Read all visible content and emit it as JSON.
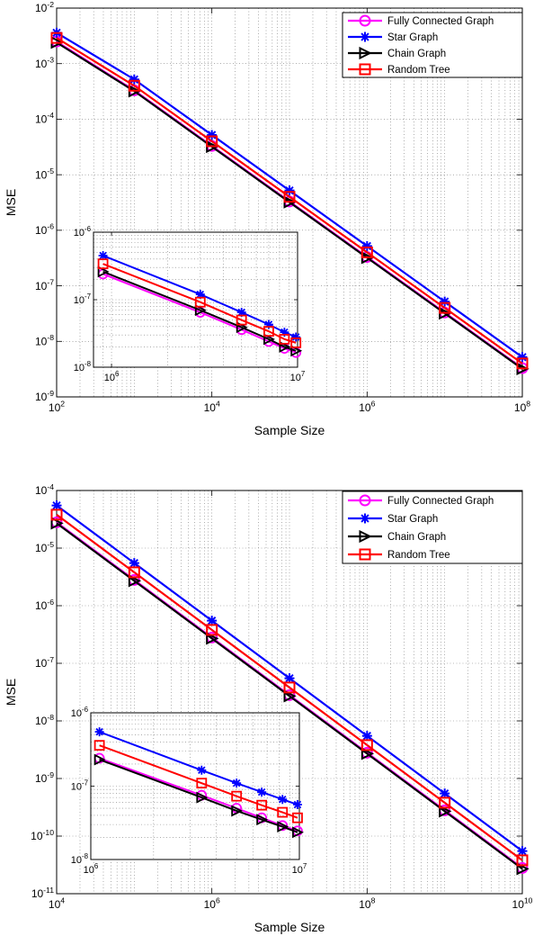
{
  "chart_data": [
    {
      "type": "line",
      "xlabel": "Sample Size",
      "ylabel": "MSE",
      "xscale": "log",
      "yscale": "log",
      "xlim": [
        100,
        100000000
      ],
      "ylim": [
        1e-09,
        0.01
      ],
      "xticks": [
        {
          "v": 100,
          "b": "10",
          "e": "2"
        },
        {
          "v": 10000,
          "b": "10",
          "e": "4"
        },
        {
          "v": 1000000,
          "b": "10",
          "e": "6"
        },
        {
          "v": 100000000,
          "b": "10",
          "e": "8"
        }
      ],
      "yticks": [
        {
          "v": 1e-09,
          "b": "10",
          "e": "-9"
        },
        {
          "v": 1e-08,
          "b": "10",
          "e": "-8"
        },
        {
          "v": 1e-07,
          "b": "10",
          "e": "-7"
        },
        {
          "v": 1e-06,
          "b": "10",
          "e": "-6"
        },
        {
          "v": 1e-05,
          "b": "10",
          "e": "-5"
        },
        {
          "v": 0.0001,
          "b": "10",
          "e": "-4"
        },
        {
          "v": 0.001,
          "b": "10",
          "e": "-3"
        },
        {
          "v": 0.01,
          "b": "10",
          "e": "-2"
        }
      ],
      "grid": true,
      "legend_position": "top-right",
      "x": [
        100,
        1000,
        10000,
        100000,
        1000000,
        10000000,
        100000000
      ],
      "series": [
        {
          "name": "Fully Connected Graph",
          "color": "#ff00ff",
          "marker": "circle",
          "values": [
            0.0025,
            0.00033,
            3.3e-05,
            3.3e-06,
            3.3e-07,
            3.3e-08,
            3.3e-09
          ]
        },
        {
          "name": "Star Graph",
          "color": "#0000ff",
          "marker": "asterisk",
          "values": [
            0.0036,
            0.00052,
            5.2e-05,
            5.2e-06,
            5.2e-07,
            5.2e-08,
            5.2e-09
          ]
        },
        {
          "name": "Chain Graph",
          "color": "#000000",
          "marker": "triangle-right",
          "values": [
            0.0024,
            0.00032,
            3.2e-05,
            3.2e-06,
            3.2e-07,
            3.2e-08,
            3.2e-09
          ]
        },
        {
          "name": "Random Tree",
          "color": "#ff0000",
          "marker": "square",
          "values": [
            0.0029,
            0.0004,
            4e-05,
            4e-06,
            4e-07,
            4e-08,
            4e-09
          ]
        }
      ],
      "inset": {
        "xlim": [
          800000,
          10000000
        ],
        "ylim": [
          1e-08,
          1e-06
        ],
        "xticks": [
          {
            "v": 1000000,
            "b": "10",
            "e": "6"
          },
          {
            "v": 10000000,
            "b": "10",
            "e": "7"
          }
        ],
        "yticks": [
          {
            "v": 1e-08,
            "b": "10",
            "e": "-8"
          },
          {
            "v": 1e-07,
            "b": "10",
            "e": "-7"
          },
          {
            "v": 1e-06,
            "b": "10",
            "e": "-6"
          }
        ],
        "x": [
          900000,
          3000000,
          5000000,
          7000000,
          8500000,
          9800000
        ],
        "series": [
          {
            "name": "Fully Connected Graph",
            "values": [
              2.4e-07,
              6.5e-08,
              3.6e-08,
              2.4e-08,
              1.9e-08,
              1.65e-08
            ]
          },
          {
            "name": "Star Graph",
            "values": [
              4.5e-07,
              1.2e-07,
              6.5e-08,
              4.3e-08,
              3.3e-08,
              2.8e-08
            ]
          },
          {
            "name": "Chain Graph",
            "values": [
              2.6e-07,
              7e-08,
              3.9e-08,
              2.6e-08,
              2e-08,
              1.75e-08
            ]
          },
          {
            "name": "Random Tree",
            "values": [
              3.4e-07,
              9.2e-08,
              5e-08,
              3.4e-08,
              2.6e-08,
              2.3e-08
            ]
          }
        ]
      }
    },
    {
      "type": "line",
      "xlabel": "Sample Size",
      "ylabel": "MSE",
      "xscale": "log",
      "yscale": "log",
      "xlim": [
        10000,
        10000000000
      ],
      "ylim": [
        1e-11,
        0.0001
      ],
      "xticks": [
        {
          "v": 10000,
          "b": "10",
          "e": "4"
        },
        {
          "v": 1000000,
          "b": "10",
          "e": "6"
        },
        {
          "v": 100000000,
          "b": "10",
          "e": "8"
        },
        {
          "v": 10000000000,
          "b": "10",
          "e": "10"
        }
      ],
      "yticks": [
        {
          "v": 1e-11,
          "b": "10",
          "e": "-11"
        },
        {
          "v": 1e-10,
          "b": "10",
          "e": "-10"
        },
        {
          "v": 1e-09,
          "b": "10",
          "e": "-9"
        },
        {
          "v": 1e-08,
          "b": "10",
          "e": "-8"
        },
        {
          "v": 1e-07,
          "b": "10",
          "e": "-7"
        },
        {
          "v": 1e-06,
          "b": "10",
          "e": "-6"
        },
        {
          "v": 1e-05,
          "b": "10",
          "e": "-5"
        },
        {
          "v": 0.0001,
          "b": "10",
          "e": "-4"
        }
      ],
      "grid": true,
      "legend_position": "top-right",
      "x": [
        10000,
        100000,
        1000000,
        10000000,
        100000000,
        1000000000,
        10000000000
      ],
      "series": [
        {
          "name": "Fully Connected Graph",
          "color": "#ff00ff",
          "marker": "circle",
          "values": [
            2.8e-05,
            2.8e-06,
            2.8e-07,
            2.8e-08,
            2.8e-09,
            2.8e-10,
            2.8e-11
          ]
        },
        {
          "name": "Star Graph",
          "color": "#0000ff",
          "marker": "asterisk",
          "values": [
            5.5e-05,
            5.5e-06,
            5.5e-07,
            5.5e-08,
            5.5e-09,
            5.5e-10,
            5.5e-11
          ]
        },
        {
          "name": "Chain Graph",
          "color": "#000000",
          "marker": "triangle-right",
          "values": [
            2.7e-05,
            2.7e-06,
            2.7e-07,
            2.7e-08,
            2.7e-09,
            2.7e-10,
            2.7e-11
          ]
        },
        {
          "name": "Random Tree",
          "color": "#ff0000",
          "marker": "square",
          "values": [
            3.8e-05,
            3.8e-06,
            3.8e-07,
            3.8e-08,
            3.8e-09,
            3.8e-10,
            3.8e-11
          ]
        }
      ],
      "inset": {
        "xlim": [
          1000000,
          10000000
        ],
        "ylim": [
          1e-08,
          1e-06
        ],
        "xticks": [
          {
            "v": 1000000,
            "b": "10",
            "e": "6"
          },
          {
            "v": 10000000,
            "b": "10",
            "e": "7"
          }
        ],
        "yticks": [
          {
            "v": 1e-08,
            "b": "10",
            "e": "-8"
          },
          {
            "v": 1e-07,
            "b": "10",
            "e": "-7"
          },
          {
            "v": 1e-06,
            "b": "10",
            "e": "-6"
          }
        ],
        "x": [
          1100000,
          3400000,
          5000000,
          6600000,
          8300000,
          9800000
        ],
        "series": [
          {
            "name": "Fully Connected Graph",
            "values": [
              2.4e-07,
              7.5e-08,
              5e-08,
              3.7e-08,
              2.9e-08,
              2.45e-08
            ]
          },
          {
            "name": "Star Graph",
            "values": [
              5.5e-07,
              1.65e-07,
              1.1e-07,
              8.3e-08,
              6.6e-08,
              5.6e-08
            ]
          },
          {
            "name": "Chain Graph",
            "values": [
              2.3e-07,
              7e-08,
              4.6e-08,
              3.5e-08,
              2.8e-08,
              2.35e-08
            ]
          },
          {
            "name": "Random Tree",
            "values": [
              3.6e-07,
              1.1e-07,
              7.3e-08,
              5.5e-08,
              4.4e-08,
              3.7e-08
            ]
          }
        ]
      }
    }
  ]
}
